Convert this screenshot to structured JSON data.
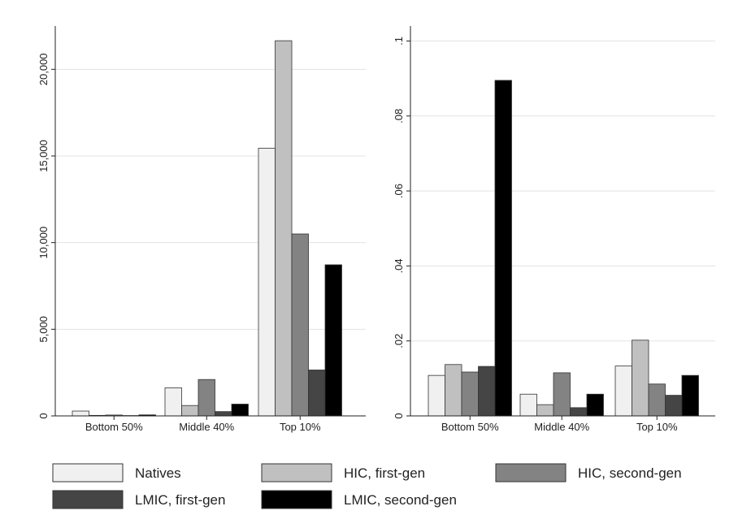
{
  "chart_data": [
    {
      "type": "bar",
      "categories": [
        "Bottom 50%",
        "Middle 40%",
        "Top 10%"
      ],
      "series": [
        {
          "name": "Natives",
          "values": [
            280,
            1620,
            15450
          ]
        },
        {
          "name": "HIC, first-gen",
          "values": [
            30,
            600,
            21650
          ]
        },
        {
          "name": "HIC, second-gen",
          "values": [
            50,
            2100,
            10500
          ]
        },
        {
          "name": "LMIC, first-gen",
          "values": [
            20,
            250,
            2650
          ]
        },
        {
          "name": "LMIC, second-gen",
          "values": [
            60,
            680,
            8720
          ]
        }
      ],
      "ylim": [
        0,
        22500
      ],
      "yticks": [
        0,
        5000,
        10000,
        15000,
        20000
      ],
      "ytick_labels": [
        "0",
        "5,000",
        "10,000",
        "15,000",
        "20,000"
      ],
      "grid": true,
      "title": "",
      "xlabel": "",
      "ylabel": ""
    },
    {
      "type": "bar",
      "categories": [
        "Bottom 50%",
        "Middle 40%",
        "Top 10%"
      ],
      "series": [
        {
          "name": "Natives",
          "values": [
            0.0108,
            0.0058,
            0.0133
          ]
        },
        {
          "name": "HIC, first-gen",
          "values": [
            0.0137,
            0.003,
            0.0202
          ]
        },
        {
          "name": "HIC, second-gen",
          "values": [
            0.0117,
            0.0115,
            0.0085
          ]
        },
        {
          "name": "LMIC, first-gen",
          "values": [
            0.0132,
            0.0022,
            0.0055
          ]
        },
        {
          "name": "LMIC, second-gen",
          "values": [
            0.0895,
            0.0058,
            0.0108
          ]
        }
      ],
      "ylim": [
        0,
        0.104
      ],
      "yticks": [
        0,
        0.02,
        0.04,
        0.06,
        0.08,
        0.1
      ],
      "ytick_labels": [
        "0",
        ".02",
        ".04",
        ".06",
        ".08",
        ".1"
      ],
      "grid": true,
      "title": "",
      "xlabel": "",
      "ylabel": ""
    }
  ],
  "legend": {
    "placement": "bottom",
    "items": [
      {
        "label": "Natives",
        "color": "#f0f0f0"
      },
      {
        "label": "HIC, first-gen",
        "color": "#c0c0c0"
      },
      {
        "label": "HIC, second-gen",
        "color": "#838383"
      },
      {
        "label": "LMIC, first-gen",
        "color": "#454545"
      },
      {
        "label": "LMIC, second-gen",
        "color": "#000000"
      }
    ]
  }
}
